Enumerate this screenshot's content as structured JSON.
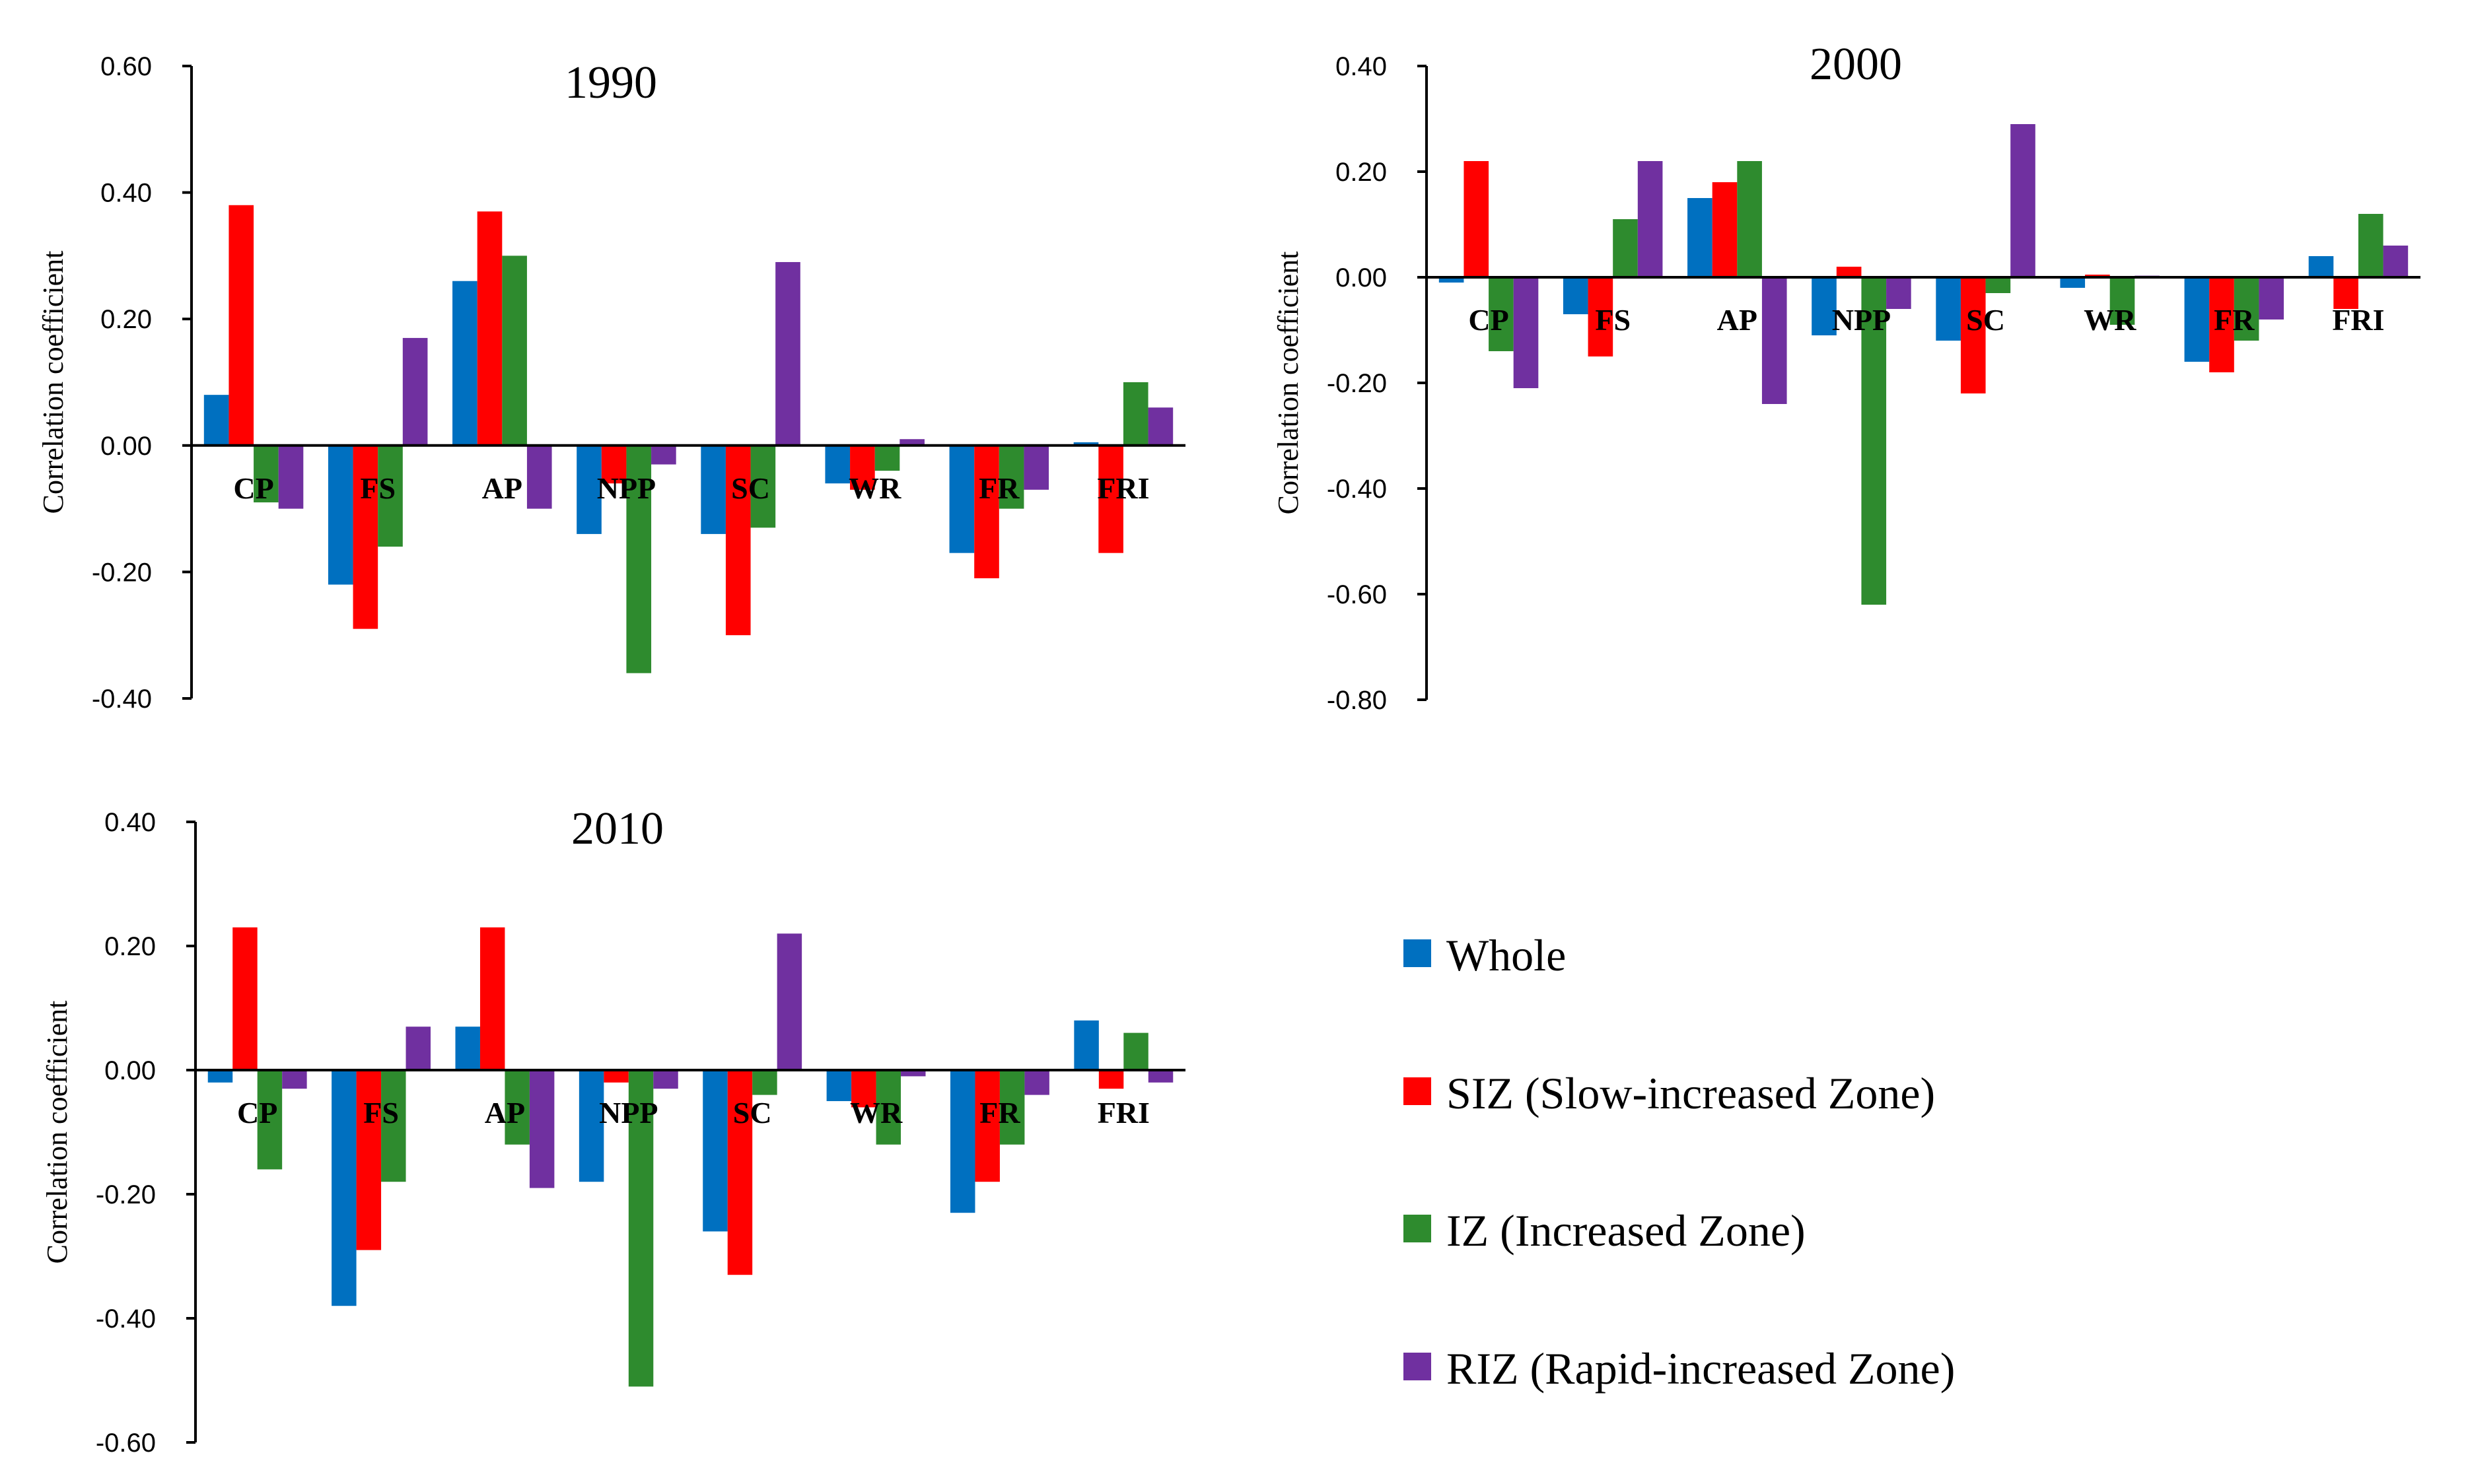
{
  "chart_data": [
    {
      "type": "bar",
      "title": "1990",
      "ylabel": "Correlation coefficient",
      "ylim": [
        -0.4,
        0.6
      ],
      "yticks": [
        "0.60",
        "0.40",
        "0.20",
        "0.00",
        "-0.20",
        "-0.40"
      ],
      "categories": [
        "CP",
        "FS",
        "AP",
        "NPP",
        "SC",
        "WR",
        "FR",
        "FRI"
      ],
      "series": [
        {
          "name": "Whole",
          "values": [
            0.08,
            -0.22,
            0.26,
            -0.14,
            -0.14,
            -0.06,
            -0.17,
            0.005
          ]
        },
        {
          "name": "SIZ (Slow-increased Zone)",
          "values": [
            0.38,
            -0.29,
            0.37,
            -0.06,
            -0.3,
            -0.07,
            -0.21,
            -0.17
          ]
        },
        {
          "name": "IZ (Increased Zone)",
          "values": [
            -0.09,
            -0.16,
            0.3,
            -0.36,
            -0.13,
            -0.04,
            -0.1,
            0.1
          ]
        },
        {
          "name": "RIZ (Rapid-increased Zone)",
          "values": [
            -0.1,
            0.17,
            -0.1,
            -0.03,
            0.29,
            0.01,
            -0.07,
            0.06
          ]
        }
      ],
      "grid": false,
      "legend": "none"
    },
    {
      "type": "bar",
      "title": "2000",
      "ylabel": "Correlation coefficient",
      "ylim": [
        -0.8,
        0.4
      ],
      "yticks": [
        "0.40",
        "0.20",
        "0.00",
        "-0.20",
        "-0.40",
        "-0.60",
        "-0.80"
      ],
      "categories": [
        "CP",
        "FS",
        "AP",
        "NPP",
        "SC",
        "WR",
        "FR",
        "FRI"
      ],
      "series": [
        {
          "name": "Whole",
          "values": [
            -0.01,
            -0.07,
            0.15,
            -0.11,
            -0.12,
            -0.02,
            -0.16,
            0.04
          ]
        },
        {
          "name": "SIZ (Slow-increased Zone)",
          "values": [
            0.22,
            -0.15,
            0.18,
            0.02,
            -0.22,
            0.005,
            -0.18,
            -0.06
          ]
        },
        {
          "name": "IZ (Increased Zone)",
          "values": [
            -0.14,
            0.11,
            0.22,
            -0.62,
            -0.03,
            -0.09,
            -0.12,
            0.12
          ]
        },
        {
          "name": "RIZ (Rapid-increased Zone)",
          "values": [
            -0.21,
            0.22,
            -0.24,
            -0.06,
            0.29,
            0.003,
            -0.08,
            0.06
          ]
        }
      ],
      "grid": false,
      "legend": "none"
    },
    {
      "type": "bar",
      "title": "2010",
      "ylabel": "Correlation coefficient",
      "ylim": [
        -0.6,
        0.4
      ],
      "yticks": [
        "0.40",
        "0.20",
        "0.00",
        "-0.20",
        "-0.40",
        "-0.60"
      ],
      "categories": [
        "CP",
        "FS",
        "AP",
        "NPP",
        "SC",
        "WR",
        "FR",
        "FRI"
      ],
      "series": [
        {
          "name": "Whole",
          "values": [
            -0.02,
            -0.38,
            0.07,
            -0.18,
            -0.26,
            -0.05,
            -0.23,
            0.08
          ]
        },
        {
          "name": "SIZ (Slow-increased Zone)",
          "values": [
            0.23,
            -0.29,
            0.23,
            -0.02,
            -0.33,
            -0.06,
            -0.18,
            -0.03
          ]
        },
        {
          "name": "IZ (Increased Zone)",
          "values": [
            -0.16,
            -0.18,
            -0.12,
            -0.51,
            -0.04,
            -0.12,
            -0.12,
            0.06
          ]
        },
        {
          "name": "RIZ (Rapid-increased Zone)",
          "values": [
            -0.03,
            0.07,
            -0.19,
            -0.03,
            0.22,
            -0.01,
            -0.04,
            -0.02
          ]
        }
      ],
      "grid": false,
      "legend": "none"
    }
  ],
  "legend": {
    "items": [
      {
        "label": "Whole",
        "color": "#0070C0"
      },
      {
        "label": "SIZ (Slow-increased Zone)",
        "color": "#FF0000"
      },
      {
        "label": "IZ (Increased Zone)",
        "color": "#2E8B2E"
      },
      {
        "label": "RIZ (Rapid-increased Zone)",
        "color": "#7030A0"
      }
    ]
  },
  "colors": {
    "whole": "#0070C0",
    "siz": "#FF0000",
    "iz": "#2E8B2E",
    "riz": "#7030A0"
  }
}
